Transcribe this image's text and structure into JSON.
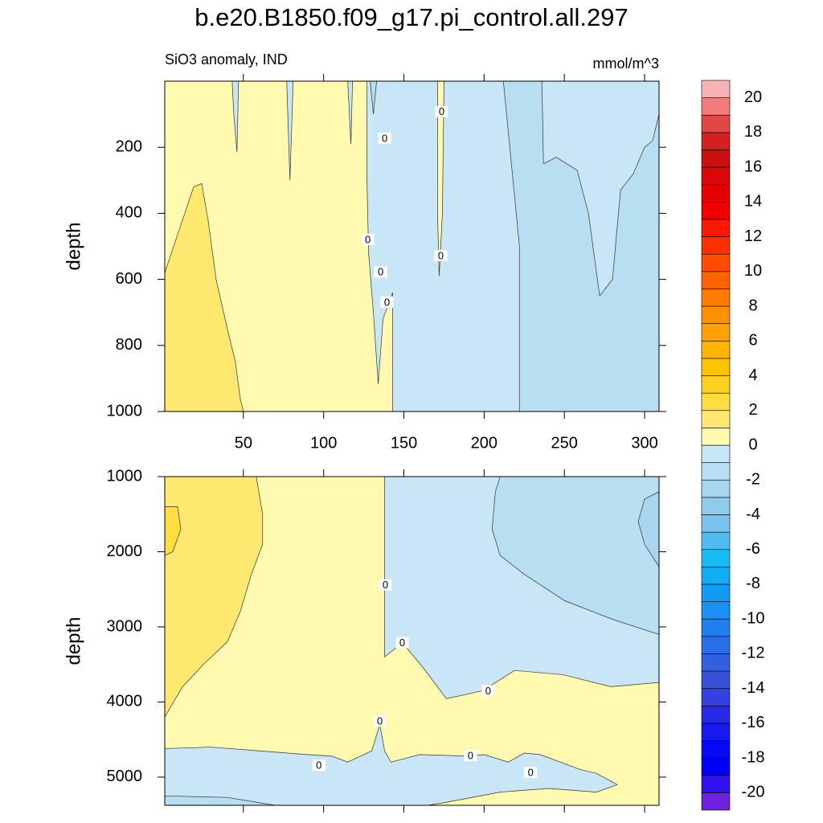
{
  "chart_data": [
    {
      "type": "contour",
      "title": "b.e20.B1850.f09_g17.pi_control.all.297",
      "subtitle": "SiO3 anomaly, IND",
      "units": "mmol/m^3",
      "ylabel": "depth",
      "xlim": [
        1,
        309
      ],
      "ylim": [
        0,
        1000
      ],
      "xticks": [
        50,
        100,
        150,
        200,
        250,
        300
      ],
      "yticks": [
        200,
        400,
        600,
        800,
        1000
      ],
      "line_color": "#333333",
      "regions": [
        {
          "level": 0,
          "x": [
            1,
            309,
            309,
            1
          ],
          "depth": [
            0,
            0,
            1000,
            1000
          ]
        },
        {
          "level": -1,
          "x": [
            127,
            309,
            309,
            143,
            143,
            137,
            134,
            131,
            128,
            127
          ],
          "depth": [
            0,
            0,
            1000,
            1000,
            640,
            720,
            917,
            700,
            520,
            300
          ]
        },
        {
          "level": 0,
          "x": [
            171,
            175,
            174,
            172,
            171
          ],
          "depth": [
            0,
            0,
            400,
            590,
            400
          ]
        },
        {
          "level": -1,
          "x": [
            43,
            47,
            46,
            44
          ],
          "depth": [
            0,
            0,
            215,
            100
          ]
        },
        {
          "level": -1,
          "x": [
            77,
            81,
            79
          ],
          "depth": [
            0,
            0,
            300
          ]
        },
        {
          "level": -1,
          "x": [
            115,
            118,
            117
          ],
          "depth": [
            0,
            0,
            190
          ]
        },
        {
          "level": -2,
          "x": [
            129,
            133,
            131
          ],
          "depth": [
            0,
            0,
            100
          ]
        },
        {
          "level": -2,
          "x": [
            212,
            236,
            237,
            245,
            258,
            265,
            272,
            280,
            285,
            293,
            300,
            305,
            309,
            309,
            222,
            222,
            215
          ],
          "depth": [
            0,
            0,
            250,
            230,
            270,
            400,
            650,
            600,
            330,
            280,
            200,
            180,
            100,
            1000,
            1000,
            500,
            150
          ]
        },
        {
          "level": 1,
          "x": [
            1,
            10,
            19,
            24,
            28,
            33,
            40,
            45,
            48,
            50,
            1
          ],
          "depth": [
            580,
            450,
            320,
            310,
            420,
            600,
            750,
            850,
            960,
            1000,
            1000
          ]
        }
      ],
      "contour_labels": [
        {
          "value": 0,
          "x": 173.5,
          "depth": 92
        },
        {
          "value": 0,
          "x": 138,
          "depth": 173
        },
        {
          "value": 0,
          "x": 127.5,
          "depth": 479
        },
        {
          "value": 0,
          "x": 173,
          "depth": 528
        },
        {
          "value": 0,
          "x": 135.5,
          "depth": 577
        },
        {
          "value": 0,
          "x": 139.5,
          "depth": 669
        }
      ],
      "colorbar": {
        "levels": [
          -21,
          -20,
          -19,
          -18,
          -17,
          -16,
          -15,
          -14,
          -13,
          -12,
          -11,
          -10,
          -9,
          -8,
          -7,
          -6,
          -5,
          -4,
          -3,
          -2,
          -1,
          0,
          1,
          2,
          3,
          4,
          5,
          6,
          7,
          8,
          9,
          10,
          11,
          12,
          13,
          14,
          15,
          16,
          17,
          18,
          19,
          20,
          21
        ],
        "colors": [
          "#7020e0",
          "#3010f0",
          "#0000ff",
          "#0808f8",
          "#1818f0",
          "#2828e8",
          "#3440e0",
          "#3850d8",
          "#3060e0",
          "#2870e8",
          "#2080f0",
          "#1890f4",
          "#109cf4",
          "#10acf4",
          "#18bcf4",
          "#50bcef",
          "#78c4ec",
          "#90cbeb",
          "#a8d6ee",
          "#b8def2",
          "#c8e6f5",
          "#fffab0",
          "#ffe870",
          "#ffdc40",
          "#ffd020",
          "#ffc400",
          "#ffb400",
          "#ffa000",
          "#ff9000",
          "#ff7c00",
          "#ff6400",
          "#ff4c00",
          "#ff3000",
          "#ff1800",
          "#f00000",
          "#e40000",
          "#d80808",
          "#cc1010",
          "#d42020",
          "#e04848",
          "#f07c7c",
          "#f8b4b4"
        ],
        "ticks": [
          -20,
          -18,
          -16,
          -14,
          -12,
          -10,
          -8,
          -6,
          -4,
          -2,
          0,
          2,
          4,
          6,
          8,
          10,
          12,
          14,
          16,
          18,
          20
        ]
      }
    },
    {
      "type": "contour",
      "ylabel": "depth",
      "xlim": [
        1,
        309
      ],
      "ylim": [
        1000,
        5375
      ],
      "yticks": [
        1000,
        2000,
        3000,
        4000,
        5000
      ],
      "line_color": "#333333",
      "regions": [
        {
          "level": 0,
          "x": [
            1,
            309,
            309,
            1
          ],
          "depth": [
            1000,
            1000,
            5375,
            5375
          ]
        },
        {
          "level": -1,
          "x": [
            138,
            309,
            309,
            279,
            249,
            219,
            199,
            176.5,
            161.5,
            149,
            138
          ],
          "depth": [
            1000,
            1000,
            3740,
            3796,
            3636,
            3580,
            3850,
            3956,
            3530,
            3210,
            3400
          ]
        },
        {
          "level": -2,
          "x": [
            210,
            309,
            309,
            280,
            250,
            225,
            210,
            205,
            207
          ],
          "depth": [
            1000,
            1000,
            3100,
            2900,
            2650,
            2300,
            2050,
            1700,
            1200
          ]
        },
        {
          "level": -3,
          "x": [
            300,
            309,
            309,
            300,
            296
          ],
          "depth": [
            1300,
            1200,
            2200,
            1900,
            1600
          ]
        },
        {
          "level": 1,
          "x": [
            1,
            58,
            62,
            62,
            55,
            48,
            40,
            25,
            12,
            1
          ],
          "depth": [
            1000,
            1000,
            1500,
            1900,
            2300,
            2800,
            3200,
            3500,
            3800,
            4200
          ]
        },
        {
          "level": 2,
          "x": [
            1,
            9,
            11,
            6,
            1
          ],
          "depth": [
            1400,
            1400,
            1700,
            2000,
            2050
          ]
        },
        {
          "level": -1,
          "x": [
            1,
            30,
            60,
            90,
            105,
            115,
            125,
            130,
            135,
            138,
            142,
            160,
            190,
            200,
            215,
            225,
            235,
            260,
            270,
            283,
            270,
            240,
            210,
            175,
            165,
            1
          ],
          "depth": [
            4620,
            4600,
            4650,
            4700,
            4720,
            4800,
            4700,
            4650,
            4300,
            4650,
            4800,
            4700,
            4720,
            4700,
            4800,
            4680,
            4700,
            4900,
            4950,
            5100,
            5200,
            5150,
            5200,
            5340,
            5375,
            5375
          ]
        },
        {
          "level": -2,
          "x": [
            1,
            40,
            60,
            70,
            1
          ],
          "depth": [
            5250,
            5270,
            5340,
            5375,
            5375
          ]
        }
      ],
      "contour_labels": [
        {
          "value": 0,
          "x": 138.5,
          "depth": 2441
        },
        {
          "value": 0,
          "x": 149,
          "depth": 3210
        },
        {
          "value": 0,
          "x": 202.5,
          "depth": 3850
        },
        {
          "value": 0,
          "x": 135,
          "depth": 4255
        },
        {
          "value": 0,
          "x": 97,
          "depth": 4842
        },
        {
          "value": 0,
          "x": 191.5,
          "depth": 4714
        },
        {
          "value": 0,
          "x": 229,
          "depth": 4938
        }
      ]
    }
  ]
}
